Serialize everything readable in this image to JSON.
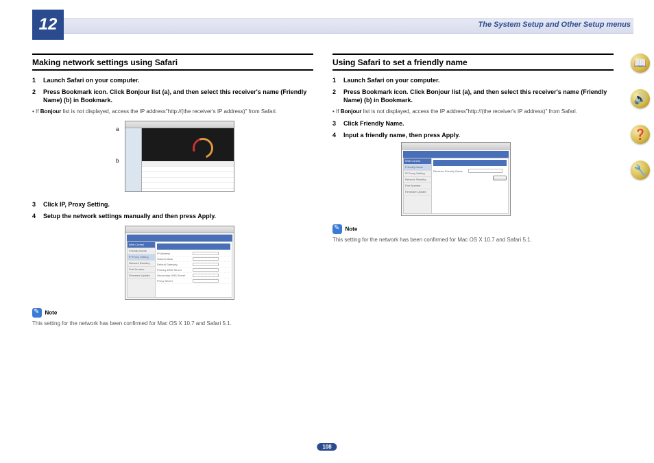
{
  "chapter": "12",
  "header_title": "The System Setup and Other Setup menus",
  "page_number": "108",
  "left": {
    "title": "Making network settings using Safari",
    "step1_num": "1",
    "step1": "Launch Safari on your computer.",
    "step2_num": "2",
    "step2": "Press Bookmark icon. Click Bonjour list (a), and then select this receiver's name (Friendly Name) (b) in Bookmark.",
    "bullet_pre": "If ",
    "bullet_bold": "Bonjour",
    "bullet_post": " list is not displayed, access the IP address\"http://(the receiver's IP address)\" from Safari.",
    "label_a": "a",
    "label_b": "b",
    "step3_num": "3",
    "step3": "Click IP, Proxy Setting.",
    "step4_num": "4",
    "step4": "Setup the network settings manually and then press Apply.",
    "note_label": "Note",
    "note_text": "This setting for the network has been confirmed for Mac OS X 10.7 and Safari 5.1."
  },
  "right": {
    "title": "Using Safari to set a friendly name",
    "step1_num": "1",
    "step1": "Launch Safari on your computer.",
    "step2_num": "2",
    "step2": "Press Bookmark icon. Click Bonjour list (a), and then select this receiver's name (Friendly Name) (b) in Bookmark.",
    "bullet_pre": "If ",
    "bullet_bold": "Bonjour",
    "bullet_post": " list is not displayed, access the IP address\"http://(the receiver's IP address)\" from Safari.",
    "step3_num": "3",
    "step3": "Click Friendly Name.",
    "step4_num": "4",
    "step4": "Input a friendly name, then press Apply.",
    "note_label": "Note",
    "note_text": "This setting for the network has been confirmed for Mac OS X 10.7 and Safari 5.1."
  },
  "side_icons": {
    "book": "📖",
    "device": "🔊",
    "help": "❓",
    "tools": "🔧"
  },
  "shot_side": {
    "hdr": "Web Control",
    "i1": "Friendly Name",
    "i2": "IP Proxy Setting",
    "i3": "Network Standby",
    "i4": "Port Number",
    "i5": "Firmware Update"
  },
  "shot2_main": {
    "hdr": "IP Proxy Setting",
    "r1": "IP Address",
    "r2": "Subnet Mask",
    "r3": "Default Gateway",
    "r4": "Primary DNS Server",
    "r5": "Secondary DNS Server",
    "r6": "Proxy Server"
  },
  "shot3_main": {
    "hdr": "Friendly Name",
    "r1": "Receiver Friendly Name"
  }
}
